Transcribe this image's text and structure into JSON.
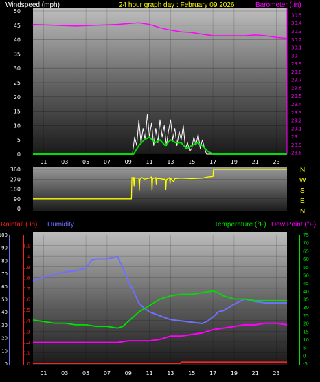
{
  "header": {
    "left_title": "Windspeed (mph)",
    "center_title": "24 hour graph day : February 09 2026",
    "right_title": "Barometer (.in)"
  },
  "colors": {
    "wind": "#ffffff",
    "wind_gust": "#c8c8c8",
    "wind_avg": "#00e000",
    "barometer": "#ff00ff",
    "direction": "#ffff00",
    "rain": "#ff2020",
    "humidity": "#7070ff",
    "temperature": "#00e000",
    "dewpoint": "#ff00ff",
    "axis_text": "#ffffff",
    "pressure_axis": "#ff00ff",
    "temp_axis": "#00e000",
    "rain_axis": "#ff2020",
    "humidity_axis": "#7070ff"
  },
  "middle": {
    "direction_letters": [
      "N",
      "W",
      "S",
      "E",
      "N"
    ]
  },
  "bottom_header": {
    "rain_label": "Rainfall (.in)",
    "humidity_label": "Humidity",
    "temp_label": "Temperature (°F)",
    "dew_label": "Dew Point (°F)"
  },
  "chart_data": [
    {
      "type": "line",
      "title": "24 hour graph day : February 09 2026",
      "xlabel": "",
      "x_ticks": [
        "01",
        "03",
        "05",
        "07",
        "09",
        "11",
        "13",
        "15",
        "17",
        "19",
        "21",
        "23"
      ],
      "xlim": [
        0,
        24
      ],
      "ylabel": "Windspeed (mph)",
      "ylim": [
        0,
        50
      ],
      "y_ticks": [
        0,
        5,
        10,
        15,
        20,
        25,
        30,
        35,
        40,
        45,
        50
      ],
      "y2label": "Barometer (.in)",
      "y2lim": [
        28.78,
        30.58
      ],
      "y2_ticks": [
        "28.8",
        "28.9",
        "29",
        "29.1",
        "29.2",
        "29.3",
        "29.4",
        "29.5",
        "29.6",
        "29.7",
        "29.8",
        "29.9",
        "30",
        "30.1",
        "30.2",
        "30.3",
        "30.4",
        "30.5"
      ],
      "series": [
        {
          "name": "Barometer (.in)",
          "axis": "y2",
          "x": [
            0,
            2,
            4,
            6,
            8,
            9,
            10,
            11,
            12,
            13,
            14,
            15,
            16,
            17,
            18,
            19,
            20,
            21,
            22,
            23,
            24
          ],
          "values": [
            30.38,
            30.37,
            30.36,
            30.37,
            30.38,
            30.39,
            30.4,
            30.38,
            30.34,
            30.31,
            30.29,
            30.28,
            30.26,
            30.24,
            30.24,
            30.24,
            30.24,
            30.25,
            30.24,
            30.22,
            30.21
          ]
        },
        {
          "name": "Windspeed (mph)",
          "axis": "y",
          "x": [
            0,
            9.4,
            9.6,
            9.8,
            10.0,
            10.2,
            10.4,
            10.6,
            10.8,
            11.0,
            11.2,
            11.4,
            11.6,
            11.8,
            12.0,
            12.2,
            12.4,
            12.6,
            12.8,
            13.0,
            13.2,
            13.4,
            13.6,
            13.8,
            14.0,
            14.2,
            14.4,
            14.6,
            14.8,
            15.0,
            15.2,
            15.4,
            15.6,
            15.8,
            16.0,
            16.2,
            16.4,
            17.0,
            24
          ],
          "values": [
            0,
            0,
            6,
            3,
            12,
            4,
            9,
            5,
            14,
            6,
            11,
            3,
            9,
            4,
            12,
            6,
            10,
            3,
            8,
            12,
            5,
            9,
            3,
            8,
            5,
            10,
            2,
            4,
            1,
            2,
            6,
            3,
            7,
            2,
            5,
            2,
            0,
            0,
            0
          ]
        },
        {
          "name": "Wind average (mph)",
          "axis": "y",
          "x": [
            0,
            9.5,
            10,
            10.5,
            11,
            11.5,
            12,
            12.5,
            13,
            13.5,
            14,
            14.5,
            15,
            15.5,
            16,
            16.5,
            17,
            24
          ],
          "values": [
            0,
            0,
            3,
            5,
            6,
            4,
            5,
            3,
            5,
            4,
            4,
            2,
            3,
            4,
            3,
            1,
            0,
            0
          ]
        }
      ]
    },
    {
      "type": "line",
      "xlabel": "",
      "xlim": [
        0,
        24
      ],
      "ylabel": "",
      "ylim": [
        0,
        360
      ],
      "y_ticks": [
        0,
        90,
        180,
        270,
        360
      ],
      "series": [
        {
          "name": "Wind direction",
          "x": [
            0,
            9.0,
            9.3,
            9.35,
            9.5,
            9.55,
            9.6,
            9.7,
            10.0,
            10.05,
            10.1,
            10.3,
            10.5,
            11.0,
            11.2,
            11.25,
            11.3,
            11.6,
            11.65,
            11.7,
            12.0,
            12.3,
            12.5,
            12.55,
            12.6,
            12.9,
            12.95,
            13.0,
            13.3,
            13.4,
            14.0,
            15.0,
            16.0,
            16.5,
            17.0,
            17.05,
            20.0,
            24
          ],
          "values": [
            90,
            90,
            90,
            285,
            285,
            210,
            285,
            280,
            280,
            170,
            270,
            285,
            270,
            280,
            290,
            170,
            275,
            285,
            220,
            275,
            275,
            270,
            270,
            175,
            265,
            285,
            230,
            280,
            245,
            275,
            280,
            275,
            280,
            290,
            295,
            360,
            360,
            360
          ]
        }
      ]
    },
    {
      "type": "line",
      "xlabel": "",
      "x_ticks": [
        "01",
        "03",
        "05",
        "07",
        "09",
        "11",
        "13",
        "15",
        "17",
        "19",
        "21",
        "23"
      ],
      "xlim": [
        0,
        24
      ],
      "y_left_outer_label": "Humidity",
      "y_left_outer_lim": [
        0,
        100
      ],
      "y_left_outer_ticks": [
        0,
        10,
        20,
        30,
        40,
        50,
        60,
        70,
        80,
        90,
        100
      ],
      "y_left_inner_label": "Rainfall (.in)",
      "y_left_inner_lim": [
        0,
        1.2
      ],
      "y_left_inner_ticks": [
        "0",
        "0.1",
        "0.2",
        "0.3",
        "0.4",
        "0.5",
        "0.6",
        "0.7",
        "0.8",
        "0.9",
        "1",
        "1.1"
      ],
      "y_right_label": "Temperature (°F)",
      "y_right_lim": [
        -5,
        75
      ],
      "y_right_ticks": [
        -5,
        0,
        5,
        10,
        15,
        20,
        25,
        30,
        35,
        40,
        45,
        50,
        55,
        60,
        65,
        70,
        75
      ],
      "series": [
        {
          "name": "Humidity",
          "axis": "left_outer",
          "x": [
            0,
            1,
            2,
            3,
            4,
            5,
            5.5,
            6,
            7,
            8,
            8.5,
            9,
            9.5,
            10,
            10.5,
            11,
            12,
            13,
            14,
            15,
            16,
            16.5,
            17,
            17.5,
            18,
            19,
            20,
            21,
            22,
            23,
            24
          ],
          "values": [
            64,
            67,
            69,
            71,
            72,
            74,
            80,
            81,
            81,
            83,
            74,
            64,
            56,
            47,
            43,
            40,
            37,
            34,
            33,
            32,
            31,
            33,
            36,
            40,
            41,
            46,
            50,
            48,
            47,
            47,
            47
          ]
        },
        {
          "name": "Rainfall (.in)",
          "axis": "left_inner",
          "x": [
            0,
            13.9,
            14,
            24
          ],
          "values": [
            0,
            0,
            0.01,
            0.01
          ]
        },
        {
          "name": "Temperature (°F)",
          "axis": "right",
          "x": [
            0,
            1,
            2,
            3,
            4,
            5,
            6,
            7,
            8,
            8.5,
            9,
            10,
            11,
            12,
            13,
            14,
            15,
            16,
            17,
            17.5,
            18,
            19,
            20,
            21,
            22,
            23,
            24
          ],
          "values": [
            22,
            21,
            20,
            20,
            19,
            19,
            18,
            18,
            17,
            18,
            21,
            27,
            31,
            35,
            37,
            38,
            38,
            39,
            40,
            39,
            37,
            35,
            35,
            34,
            34,
            34,
            34
          ]
        },
        {
          "name": "Dew Point (°F)",
          "axis": "right",
          "x": [
            0,
            2,
            4,
            6,
            8,
            9,
            10,
            11,
            12,
            13,
            14,
            15,
            16,
            17,
            18,
            19,
            20,
            21,
            22,
            23,
            24
          ],
          "values": [
            8,
            8,
            8,
            8,
            8,
            9,
            9,
            9,
            10,
            12,
            12,
            13,
            14,
            16,
            17,
            18,
            19,
            19,
            20,
            20,
            19
          ]
        }
      ]
    }
  ]
}
